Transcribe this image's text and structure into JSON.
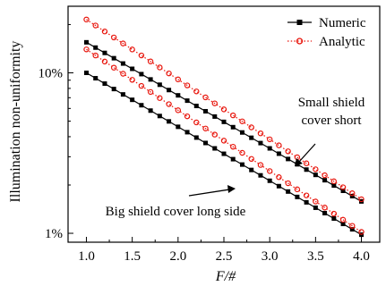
{
  "chart_data": {
    "type": "line",
    "xlabel": "F/#",
    "ylabel": "Illumination non-uniformity",
    "xlim": [
      0.8,
      4.2
    ],
    "ylim": [
      0.0088,
      0.26
    ],
    "yscale": "log",
    "grid": false,
    "legend_position": "top-right",
    "x_ticks": [
      "1.0",
      "1.5",
      "2.0",
      "2.5",
      "3.0",
      "3.5",
      "4.0"
    ],
    "y_ticks": [
      {
        "value": 0.01,
        "label": "1%"
      },
      {
        "value": 0.1,
        "label": "10%"
      }
    ],
    "legend": [
      {
        "label": "Numeric",
        "style": "solid-square",
        "color": "#000000"
      },
      {
        "label": "Analytic",
        "style": "dotted-circle",
        "color": "#e8150c"
      }
    ],
    "annotations": {
      "upper": [
        "Small shield",
        "cover short"
      ],
      "lower": "Big shield cover long side"
    },
    "series": [
      {
        "group": "Small shield cover short",
        "kind": "Numeric",
        "x_start": 1.0,
        "x_end": 4.0,
        "y_start": 0.155,
        "y_end": 0.0158
      },
      {
        "group": "Small shield cover short",
        "kind": "Analytic",
        "x_start": 1.0,
        "x_end": 4.0,
        "y_start": 0.215,
        "y_end": 0.0163
      },
      {
        "group": "Big shield cover long side",
        "kind": "Numeric",
        "x_start": 1.0,
        "x_end": 4.0,
        "y_start": 0.1,
        "y_end": 0.0098
      },
      {
        "group": "Big shield cover long side",
        "kind": "Analytic",
        "x_start": 1.0,
        "x_end": 4.0,
        "y_start": 0.14,
        "y_end": 0.0102
      }
    ],
    "points_per_series": 31
  },
  "colors": {
    "numeric": "#000000",
    "analytic": "#e8150c",
    "axis": "#000000"
  }
}
